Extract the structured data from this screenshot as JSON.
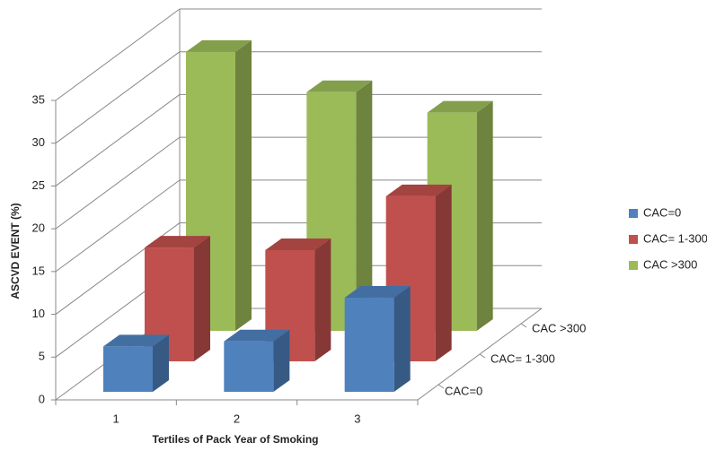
{
  "chart_data": {
    "type": "bar3d",
    "x_label": "Tertiles of Pack Year of Smoking",
    "y_label": "ASCVD EVENT (%)",
    "categories": [
      "1",
      "2",
      "3"
    ],
    "series": [
      {
        "name": "CAC=0",
        "color": "#4f81bd",
        "values": [
          5.3,
          5.9,
          11
        ]
      },
      {
        "name": "CAC= 1-300",
        "color": "#c0504d",
        "values": [
          13.3,
          13,
          19.3
        ]
      },
      {
        "name": "CAC >300",
        "color": "#9bbb59",
        "values": [
          32.6,
          27.9,
          25.5
        ]
      }
    ],
    "ylim": [
      0,
      35
    ],
    "yticks": [
      0,
      5,
      10,
      15,
      20,
      25,
      30,
      35
    ],
    "grid": true,
    "legend": "right"
  }
}
